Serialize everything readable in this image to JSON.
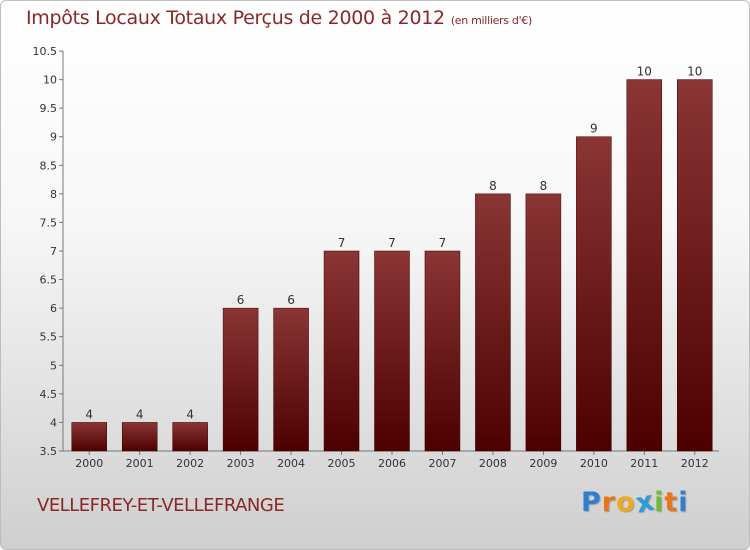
{
  "title": "Impôts Locaux Totaux Perçus de 2000 à 2012",
  "subtitle": "(en milliers d'€)",
  "commune": "VELLEFREY-ET-VELLEFRANGE",
  "logo": {
    "letters": [
      "P",
      "r",
      "o",
      "x",
      "i",
      "t",
      "i"
    ],
    "colors": [
      "#2f7fd0",
      "#e8751a",
      "#f0a81c",
      "#2e9cd6",
      "#72b73b",
      "#e8751a",
      "#2f7fd0"
    ]
  },
  "colors": {
    "bar_top": "#8b3535",
    "bar_bottom": "#4d0000",
    "title": "#8a2727"
  },
  "chart_data": {
    "type": "bar",
    "title": "Impôts Locaux Totaux Perçus de 2000 à 2012",
    "ylabel": "en milliers d'€",
    "categories": [
      "2000",
      "2001",
      "2002",
      "2003",
      "2004",
      "2005",
      "2006",
      "2007",
      "2008",
      "2009",
      "2010",
      "2011",
      "2012"
    ],
    "values": [
      4,
      4,
      4,
      6,
      6,
      7,
      7,
      7,
      8,
      8,
      9,
      10,
      10
    ],
    "ylim": [
      3.5,
      10.5
    ],
    "yticks": [
      "3.5",
      "4",
      "4.5",
      "5",
      "5.5",
      "6",
      "6.5",
      "7",
      "7.5",
      "8",
      "8.5",
      "9",
      "9.5",
      "10",
      "10.5"
    ],
    "grid": false,
    "legend": "none"
  }
}
